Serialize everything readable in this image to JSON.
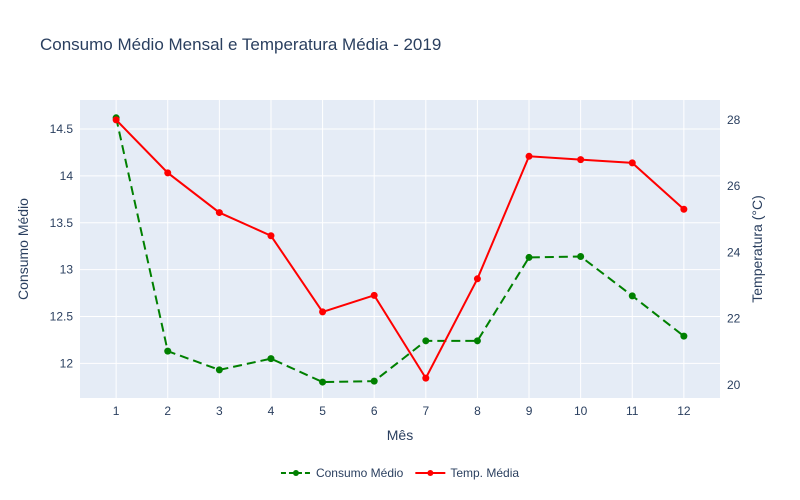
{
  "chart_data": {
    "type": "line",
    "title": "Consumo Médio Mensal e Temperatura Média - 2019",
    "xlabel": "Mês",
    "ylabel": "Consumo Médio",
    "y2label": "Temperatura (°C)",
    "x": [
      1,
      2,
      3,
      4,
      5,
      6,
      7,
      8,
      9,
      10,
      11,
      12
    ],
    "xlim": [
      0.3,
      12.7
    ],
    "ylim": [
      11.63,
      14.81
    ],
    "y2lim": [
      19.6,
      28.6
    ],
    "yticks": [
      12,
      12.5,
      13,
      13.5,
      14,
      14.5
    ],
    "y2ticks": [
      20,
      22,
      24,
      26,
      28
    ],
    "grid": true,
    "legend_position": "bottom-center",
    "plot_background": "#e5ecf6",
    "series": [
      {
        "name": "Consumo Médio",
        "axis": "y",
        "color": "#008000",
        "dash": "dashed",
        "values": [
          14.62,
          12.13,
          11.93,
          12.05,
          11.8,
          11.81,
          12.24,
          12.24,
          13.13,
          13.14,
          12.72,
          12.29
        ]
      },
      {
        "name": "Temp. Média",
        "axis": "y2",
        "color": "#ff0000",
        "dash": "solid",
        "values": [
          28.0,
          26.4,
          25.2,
          24.5,
          22.2,
          22.7,
          20.2,
          23.2,
          26.9,
          26.8,
          26.7,
          25.3
        ]
      }
    ]
  }
}
